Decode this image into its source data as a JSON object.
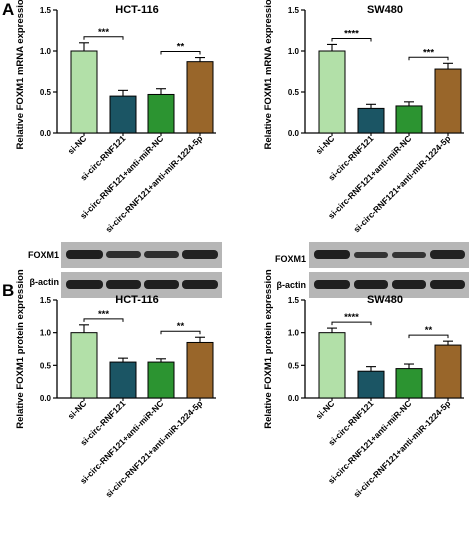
{
  "panels": [
    {
      "letter": "A"
    },
    {
      "letter": "B"
    }
  ],
  "blots": [
    {
      "rows": [
        "FOXM1",
        "β-actin"
      ]
    },
    {
      "rows": [
        "FOXM1",
        "β-actin"
      ]
    }
  ],
  "colors": {
    "si-NC": "#b2e0a8",
    "si-circ-RNF121": "#1b5564",
    "si-circ-RNF121+anti-miR-NC": "#2c9431",
    "si-circ-RNF121+anti-miR-1224-5p": "#99662a"
  },
  "chart_data": [
    {
      "type": "bar",
      "title": "HCT-116",
      "ylabel": "Relative FOXM1 mRNA expression",
      "categories": [
        "si-NC",
        "si-circ-RNF121",
        "si-circ-RNF121+anti-miR-NC",
        "si-circ-RNF121+anti-miR-1224-5p"
      ],
      "values": [
        1.0,
        0.45,
        0.47,
        0.87
      ],
      "errors": [
        0.1,
        0.07,
        0.07,
        0.05
      ],
      "ylim": [
        0,
        1.5
      ],
      "yticks": [
        "0.0",
        "0.5",
        "1.0",
        "1.5"
      ],
      "significance": [
        {
          "from": 0,
          "to": 1,
          "label": "***"
        },
        {
          "from": 2,
          "to": 3,
          "label": "**"
        }
      ]
    },
    {
      "type": "bar",
      "title": "SW480",
      "ylabel": "Relative FOXM1 mRNA expression",
      "categories": [
        "si-NC",
        "si-circ-RNF121",
        "si-circ-RNF121+anti-miR-NC",
        "si-circ-RNF121+anti-miR-1224-5p"
      ],
      "values": [
        1.0,
        0.3,
        0.33,
        0.78
      ],
      "errors": [
        0.08,
        0.05,
        0.05,
        0.07
      ],
      "ylim": [
        0,
        1.5
      ],
      "yticks": [
        "0.0",
        "0.5",
        "1.0",
        "1.5"
      ],
      "significance": [
        {
          "from": 0,
          "to": 1,
          "label": "****"
        },
        {
          "from": 2,
          "to": 3,
          "label": "***"
        }
      ]
    },
    {
      "type": "bar",
      "title": "HCT-116",
      "ylabel": "Relative FOXM1 protein expression",
      "categories": [
        "si-NC",
        "si-circ-RNF121",
        "si-circ-RNF121+anti-miR-NC",
        "si-circ-RNF121+anti-miR-1224-5p"
      ],
      "values": [
        1.0,
        0.55,
        0.55,
        0.85
      ],
      "errors": [
        0.12,
        0.06,
        0.05,
        0.08
      ],
      "ylim": [
        0,
        1.5
      ],
      "yticks": [
        "0.0",
        "0.5",
        "1.0",
        "1.5"
      ],
      "significance": [
        {
          "from": 0,
          "to": 1,
          "label": "***"
        },
        {
          "from": 2,
          "to": 3,
          "label": "**"
        }
      ]
    },
    {
      "type": "bar",
      "title": "SW480",
      "ylabel": "Relative FOXM1 protein expression",
      "categories": [
        "si-NC",
        "si-circ-RNF121",
        "si-circ-RNF121+anti-miR-NC",
        "si-circ-RNF121+anti-miR-1224-5p"
      ],
      "values": [
        1.0,
        0.41,
        0.45,
        0.81
      ],
      "errors": [
        0.07,
        0.07,
        0.07,
        0.06
      ],
      "ylim": [
        0,
        1.5
      ],
      "yticks": [
        "0.0",
        "0.5",
        "1.0",
        "1.5"
      ],
      "significance": [
        {
          "from": 0,
          "to": 1,
          "label": "****"
        },
        {
          "from": 2,
          "to": 3,
          "label": "**"
        }
      ]
    }
  ]
}
